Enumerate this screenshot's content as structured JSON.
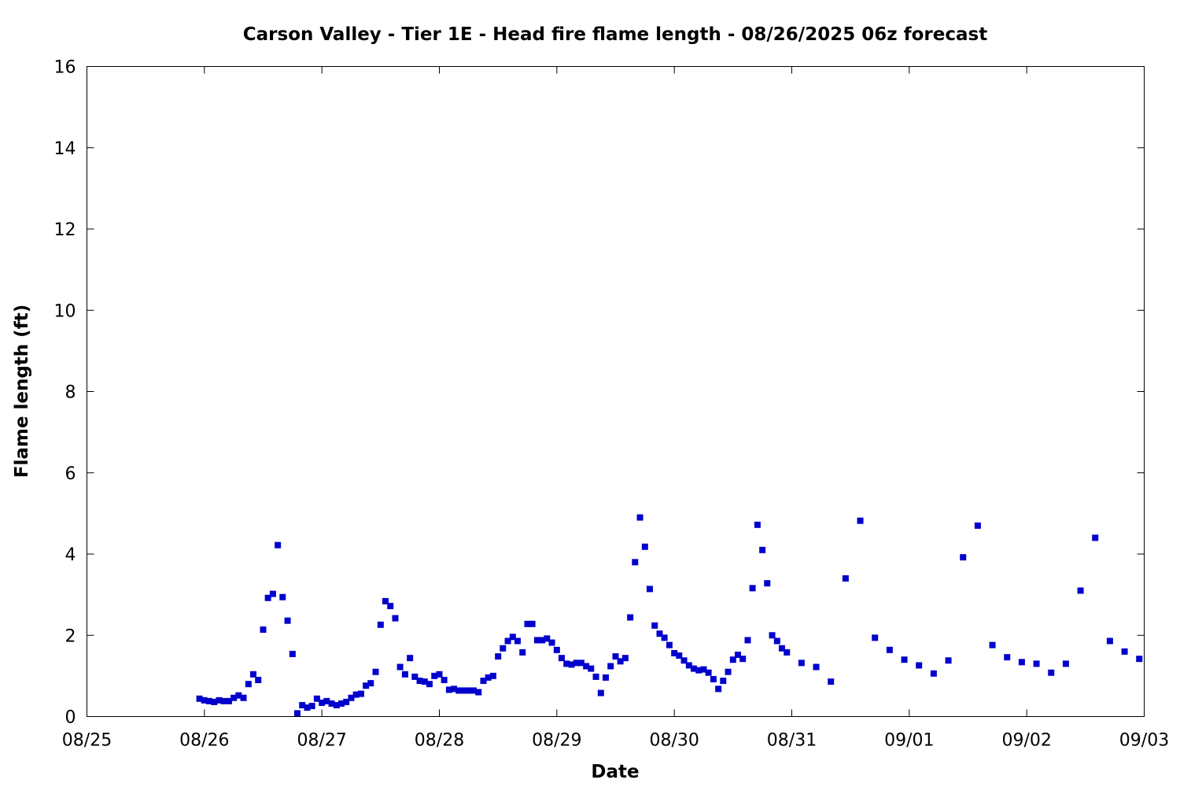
{
  "chart_data": {
    "type": "scatter",
    "title": "Carson Valley - Tier 1E - Head fire flame length - 08/26/2025 06z forecast",
    "xlabel": "Date",
    "ylabel": "Flame length (ft)",
    "xlim": [
      0,
      9
    ],
    "ylim": [
      0,
      16
    ],
    "x_tick_values": [
      0,
      1,
      2,
      3,
      4,
      5,
      6,
      7,
      8,
      9
    ],
    "x_tick_labels": [
      "08/25",
      "08/26",
      "08/27",
      "08/28",
      "08/29",
      "08/30",
      "08/31",
      "09/01",
      "09/02",
      "09/03"
    ],
    "y_ticks": [
      0,
      2,
      4,
      6,
      8,
      10,
      12,
      14,
      16
    ],
    "grid": false,
    "marker_color": "#0000cc",
    "series": [
      {
        "name": "",
        "points": [
          [
            0.958,
            0.44
          ],
          [
            0.999,
            0.4
          ],
          [
            1.041,
            0.38
          ],
          [
            1.083,
            0.36
          ],
          [
            1.125,
            0.4
          ],
          [
            1.166,
            0.38
          ],
          [
            1.208,
            0.38
          ],
          [
            1.25,
            0.46
          ],
          [
            1.291,
            0.52
          ],
          [
            1.333,
            0.46
          ],
          [
            1.375,
            0.8
          ],
          [
            1.416,
            1.04
          ],
          [
            1.458,
            0.9
          ],
          [
            1.5,
            2.14
          ],
          [
            1.541,
            2.92
          ],
          [
            1.583,
            3.02
          ],
          [
            1.625,
            4.22
          ],
          [
            1.666,
            2.94
          ],
          [
            1.708,
            2.36
          ],
          [
            1.75,
            1.54
          ],
          [
            1.791,
            0.08
          ],
          [
            1.833,
            0.28
          ],
          [
            1.875,
            0.22
          ],
          [
            1.916,
            0.26
          ],
          [
            1.958,
            0.44
          ],
          [
            2.0,
            0.34
          ],
          [
            2.041,
            0.38
          ],
          [
            2.083,
            0.32
          ],
          [
            2.125,
            0.28
          ],
          [
            2.166,
            0.32
          ],
          [
            2.208,
            0.36
          ],
          [
            2.25,
            0.46
          ],
          [
            2.291,
            0.54
          ],
          [
            2.333,
            0.56
          ],
          [
            2.375,
            0.76
          ],
          [
            2.416,
            0.82
          ],
          [
            2.458,
            1.1
          ],
          [
            2.5,
            2.26
          ],
          [
            2.541,
            2.84
          ],
          [
            2.583,
            2.72
          ],
          [
            2.625,
            2.42
          ],
          [
            2.666,
            1.22
          ],
          [
            2.708,
            1.04
          ],
          [
            2.75,
            1.44
          ],
          [
            2.791,
            0.98
          ],
          [
            2.833,
            0.88
          ],
          [
            2.875,
            0.86
          ],
          [
            2.916,
            0.8
          ],
          [
            2.958,
            1.0
          ],
          [
            3.0,
            1.04
          ],
          [
            3.041,
            0.9
          ],
          [
            3.083,
            0.66
          ],
          [
            3.125,
            0.68
          ],
          [
            3.166,
            0.64
          ],
          [
            3.208,
            0.64
          ],
          [
            3.25,
            0.64
          ],
          [
            3.291,
            0.64
          ],
          [
            3.333,
            0.6
          ],
          [
            3.375,
            0.88
          ],
          [
            3.416,
            0.96
          ],
          [
            3.458,
            1.0
          ],
          [
            3.5,
            1.48
          ],
          [
            3.541,
            1.68
          ],
          [
            3.583,
            1.86
          ],
          [
            3.625,
            1.96
          ],
          [
            3.666,
            1.86
          ],
          [
            3.708,
            1.58
          ],
          [
            3.75,
            2.28
          ],
          [
            3.791,
            2.28
          ],
          [
            3.833,
            1.88
          ],
          [
            3.875,
            1.88
          ],
          [
            3.916,
            1.92
          ],
          [
            3.958,
            1.82
          ],
          [
            4.0,
            1.64
          ],
          [
            4.041,
            1.44
          ],
          [
            4.083,
            1.3
          ],
          [
            4.125,
            1.28
          ],
          [
            4.166,
            1.32
          ],
          [
            4.208,
            1.32
          ],
          [
            4.25,
            1.24
          ],
          [
            4.291,
            1.18
          ],
          [
            4.333,
            0.98
          ],
          [
            4.375,
            0.58
          ],
          [
            4.416,
            0.96
          ],
          [
            4.458,
            1.24
          ],
          [
            4.5,
            1.48
          ],
          [
            4.541,
            1.36
          ],
          [
            4.583,
            1.44
          ],
          [
            4.625,
            2.44
          ],
          [
            4.666,
            3.8
          ],
          [
            4.708,
            4.9
          ],
          [
            4.75,
            4.18
          ],
          [
            4.791,
            3.14
          ],
          [
            4.833,
            2.24
          ],
          [
            4.875,
            2.04
          ],
          [
            4.916,
            1.94
          ],
          [
            4.958,
            1.76
          ],
          [
            5.0,
            1.56
          ],
          [
            5.041,
            1.5
          ],
          [
            5.083,
            1.38
          ],
          [
            5.125,
            1.26
          ],
          [
            5.166,
            1.18
          ],
          [
            5.208,
            1.14
          ],
          [
            5.25,
            1.16
          ],
          [
            5.291,
            1.08
          ],
          [
            5.333,
            0.92
          ],
          [
            5.375,
            0.68
          ],
          [
            5.416,
            0.88
          ],
          [
            5.458,
            1.1
          ],
          [
            5.5,
            1.4
          ],
          [
            5.541,
            1.52
          ],
          [
            5.583,
            1.42
          ],
          [
            5.625,
            1.88
          ],
          [
            5.666,
            3.16
          ],
          [
            5.708,
            4.72
          ],
          [
            5.75,
            4.1
          ],
          [
            5.791,
            3.28
          ],
          [
            5.833,
            2.0
          ],
          [
            5.875,
            1.86
          ],
          [
            5.916,
            1.68
          ],
          [
            5.958,
            1.58
          ],
          [
            6.083,
            1.32
          ],
          [
            6.208,
            1.22
          ],
          [
            6.333,
            0.86
          ],
          [
            6.458,
            3.4
          ],
          [
            6.583,
            4.82
          ],
          [
            6.708,
            1.94
          ],
          [
            6.833,
            1.64
          ],
          [
            6.958,
            1.4
          ],
          [
            7.083,
            1.26
          ],
          [
            7.208,
            1.06
          ],
          [
            7.333,
            1.38
          ],
          [
            7.458,
            3.92
          ],
          [
            7.583,
            4.7
          ],
          [
            7.708,
            1.76
          ],
          [
            7.833,
            1.46
          ],
          [
            7.958,
            1.34
          ],
          [
            8.083,
            1.3
          ],
          [
            8.208,
            1.08
          ],
          [
            8.333,
            1.3
          ],
          [
            8.458,
            3.1
          ],
          [
            8.583,
            4.4
          ],
          [
            8.708,
            1.86
          ],
          [
            8.833,
            1.6
          ],
          [
            8.958,
            1.42
          ]
        ]
      }
    ]
  }
}
